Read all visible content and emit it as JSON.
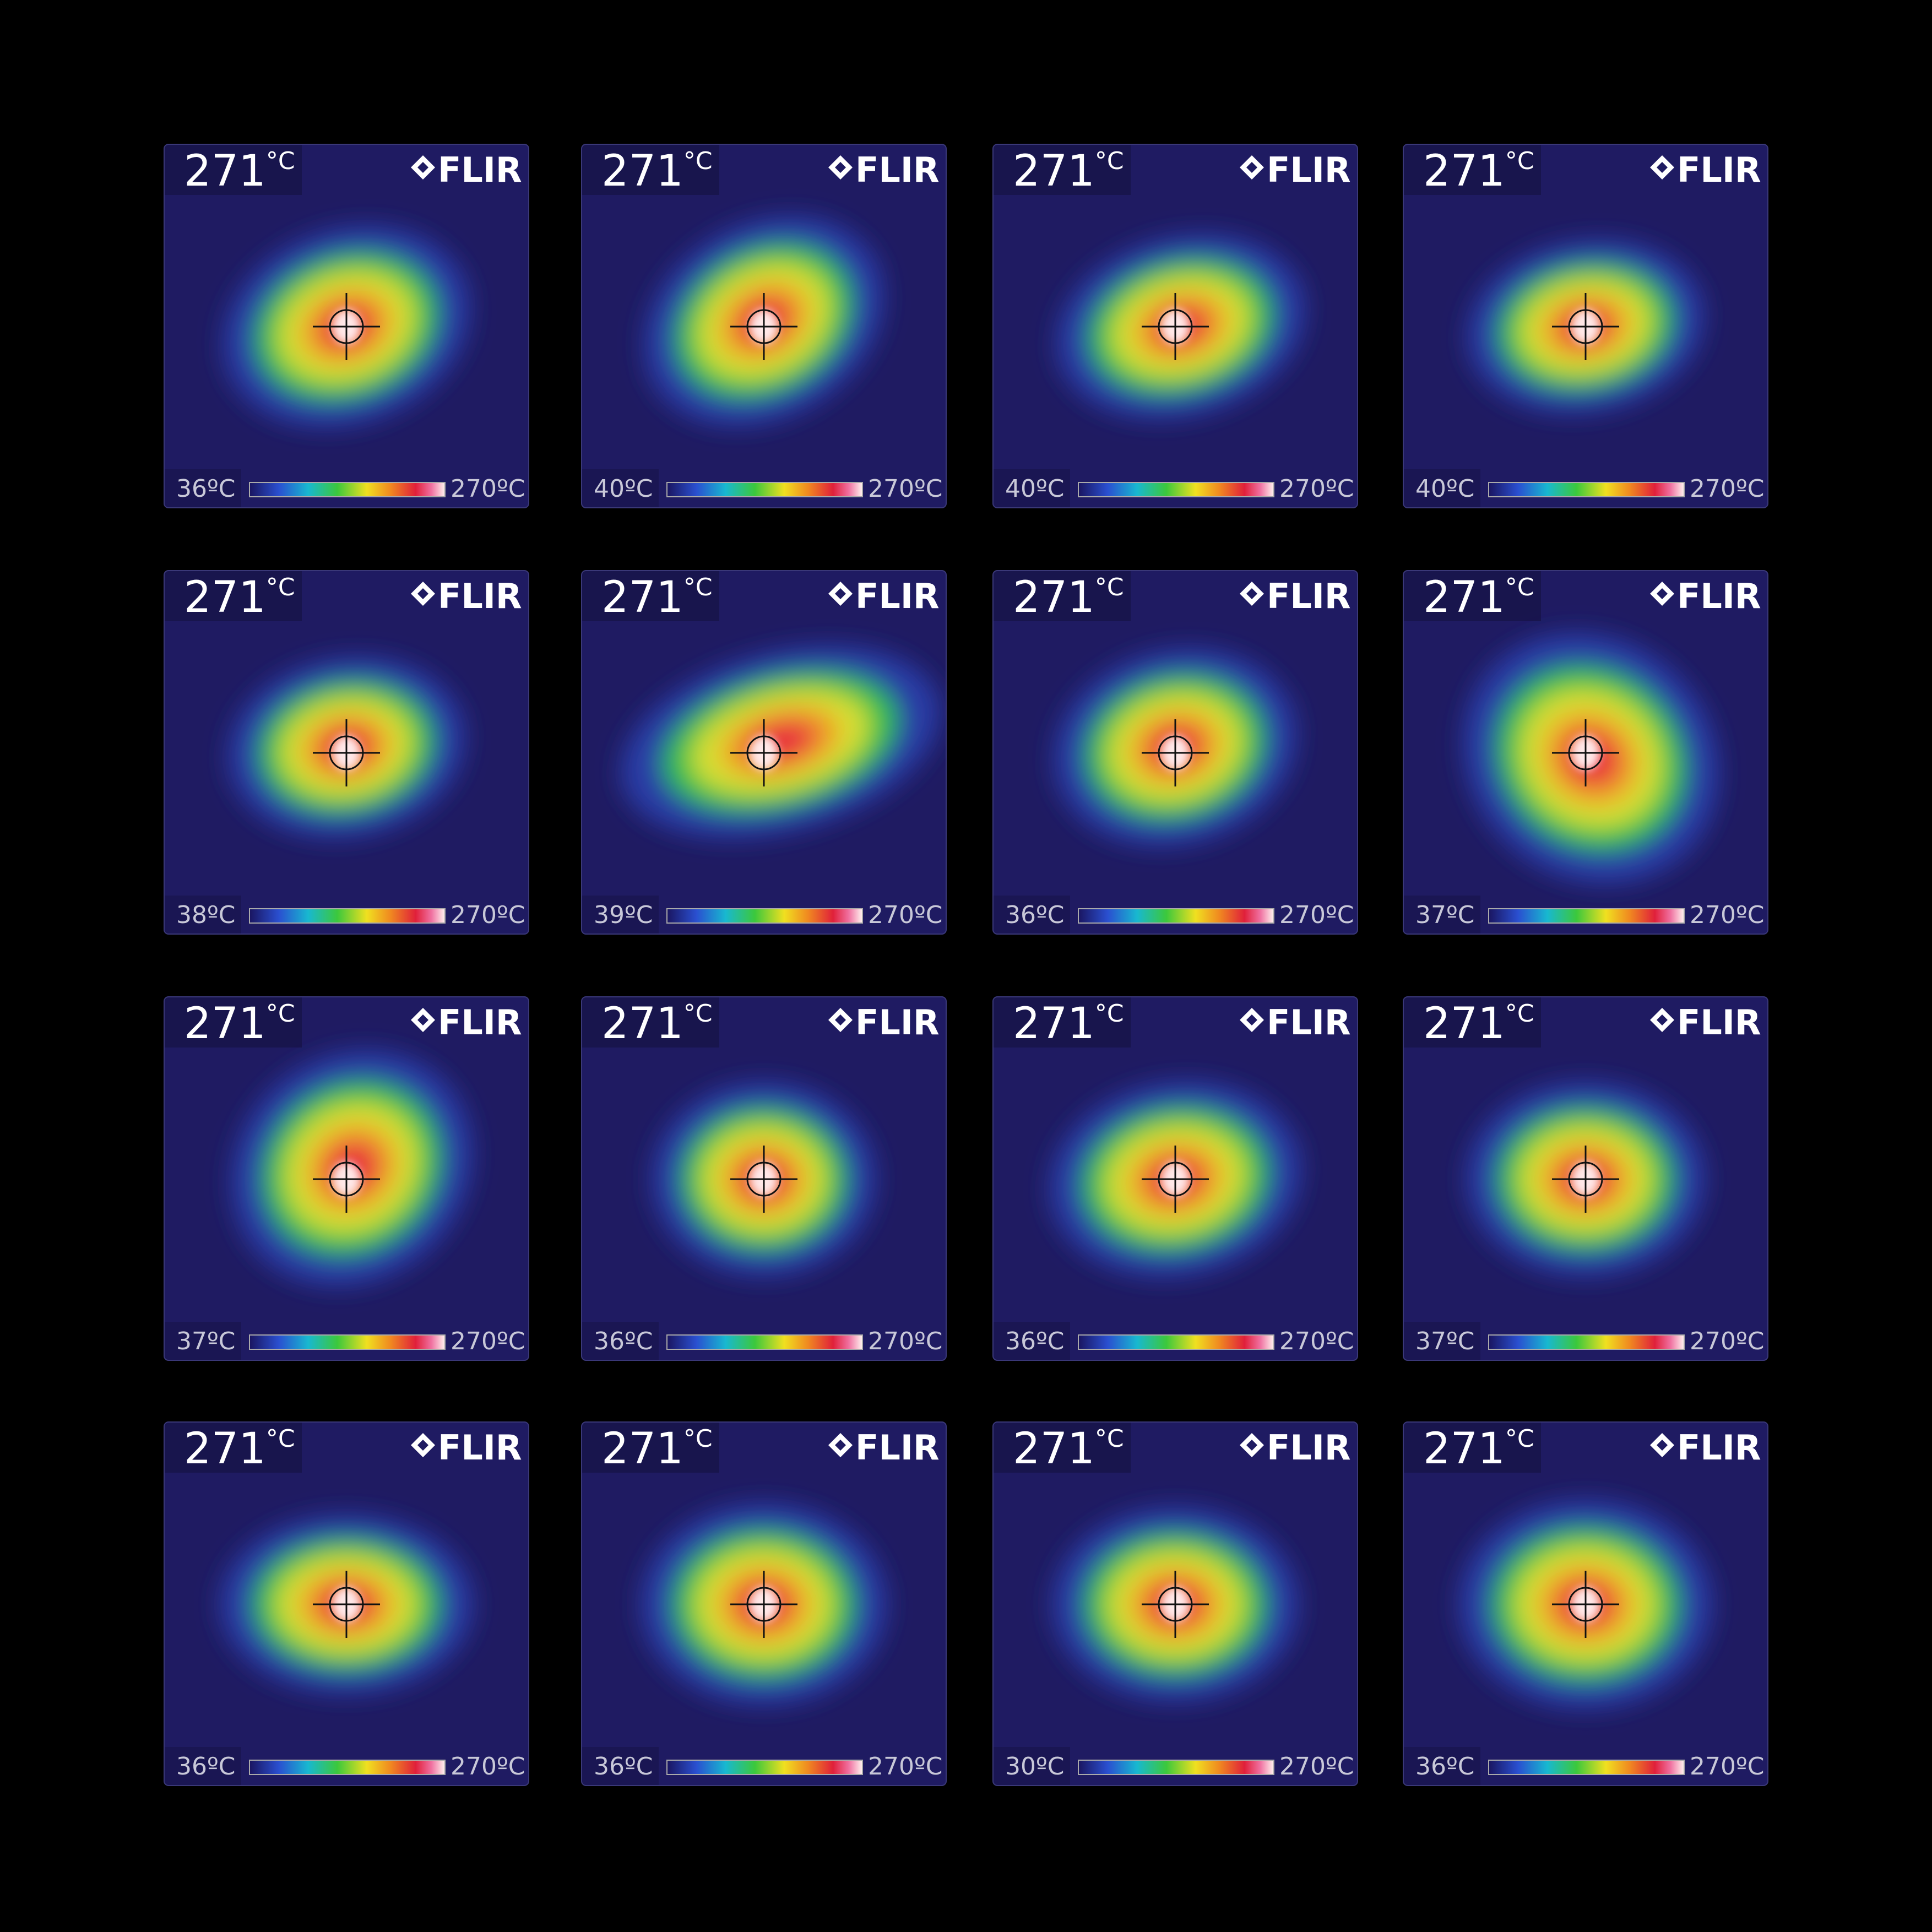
{
  "panels": [
    {
      "spot_value": "271",
      "spot_unit": "°C",
      "logo": "FLIR",
      "min": "36ºC",
      "max": "270ºC"
    },
    {
      "spot_value": "271",
      "spot_unit": "°C",
      "logo": "FLIR",
      "min": "40ºC",
      "max": "270ºC"
    },
    {
      "spot_value": "271",
      "spot_unit": "°C",
      "logo": "FLIR",
      "min": "40ºC",
      "max": "270ºC"
    },
    {
      "spot_value": "271",
      "spot_unit": "°C",
      "logo": "FLIR",
      "min": "40ºC",
      "max": "270ºC"
    },
    {
      "spot_value": "271",
      "spot_unit": "°C",
      "logo": "FLIR",
      "min": "38ºC",
      "max": "270ºC"
    },
    {
      "spot_value": "271",
      "spot_unit": "°C",
      "logo": "FLIR",
      "min": "39ºC",
      "max": "270ºC"
    },
    {
      "spot_value": "271",
      "spot_unit": "°C",
      "logo": "FLIR",
      "min": "36ºC",
      "max": "270ºC"
    },
    {
      "spot_value": "271",
      "spot_unit": "°C",
      "logo": "FLIR",
      "min": "37ºC",
      "max": "270ºC"
    },
    {
      "spot_value": "271",
      "spot_unit": "°C",
      "logo": "FLIR",
      "min": "37ºC",
      "max": "270ºC"
    },
    {
      "spot_value": "271",
      "spot_unit": "°C",
      "logo": "FLIR",
      "min": "36ºC",
      "max": "270ºC"
    },
    {
      "spot_value": "271",
      "spot_unit": "°C",
      "logo": "FLIR",
      "min": "36ºC",
      "max": "270ºC"
    },
    {
      "spot_value": "271",
      "spot_unit": "°C",
      "logo": "FLIR",
      "min": "37ºC",
      "max": "270ºC"
    },
    {
      "spot_value": "271",
      "spot_unit": "°C",
      "logo": "FLIR",
      "min": "36ºC",
      "max": "270ºC"
    },
    {
      "spot_value": "271",
      "spot_unit": "°C",
      "logo": "FLIR",
      "min": "36ºC",
      "max": "270ºC"
    },
    {
      "spot_value": "271",
      "spot_unit": "°C",
      "logo": "FLIR",
      "min": "30ºC",
      "max": "270ºC"
    },
    {
      "spot_value": "271",
      "spot_unit": "°C",
      "logo": "FLIR",
      "min": "36ºC",
      "max": "270ºC"
    }
  ]
}
